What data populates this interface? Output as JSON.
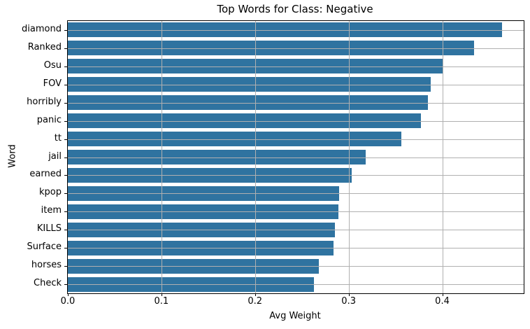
{
  "chart_data": {
    "type": "bar",
    "orientation": "horizontal",
    "title": "Top Words for Class: Negative",
    "xlabel": "Avg Weight",
    "ylabel": "Word",
    "categories": [
      "diamond",
      "Ranked",
      "Osu",
      "FOV",
      "horribly",
      "panic",
      "tt",
      "jail",
      "earned",
      "kpop",
      "item",
      "KILLS",
      "Surface",
      "horses",
      "Check"
    ],
    "values": [
      0.464,
      0.434,
      0.401,
      0.388,
      0.385,
      0.377,
      0.356,
      0.318,
      0.303,
      0.29,
      0.289,
      0.285,
      0.284,
      0.268,
      0.263
    ],
    "xlim": [
      0,
      0.487
    ],
    "xticks": [
      0.0,
      0.1,
      0.2,
      0.3,
      0.4
    ],
    "grid": true,
    "legend": null,
    "bar_color": "#2f73a0",
    "grid_color": "#b0b0b0",
    "spine_color": "#000000",
    "background_color": "#ffffff"
  }
}
